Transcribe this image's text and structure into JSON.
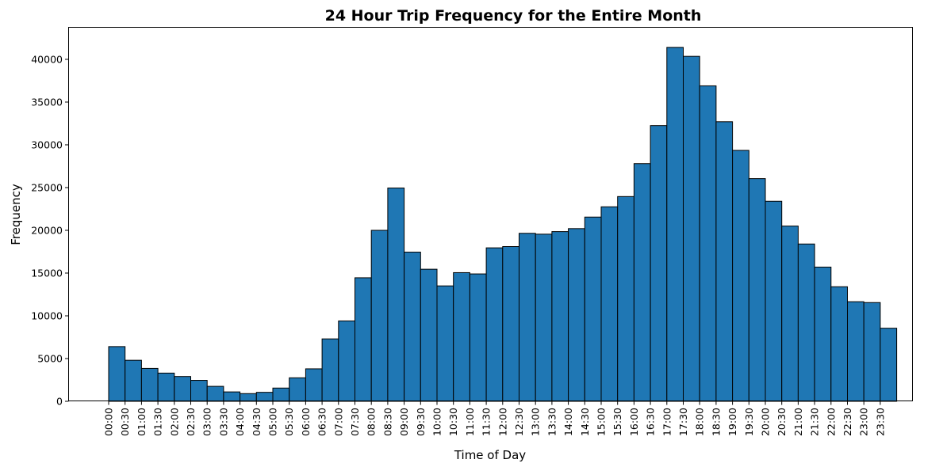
{
  "chart_data": {
    "type": "bar",
    "title": "24 Hour Trip Frequency for the Entire Month",
    "xlabel": "Time of Day",
    "ylabel": "Frequency",
    "ylim": [
      0,
      43700
    ],
    "yticks": [
      0,
      5000,
      10000,
      15000,
      20000,
      25000,
      30000,
      35000,
      40000
    ],
    "grid": false,
    "categories": [
      "00:00",
      "00:30",
      "01:00",
      "01:30",
      "02:00",
      "02:30",
      "03:00",
      "03:30",
      "04:00",
      "04:30",
      "05:00",
      "05:30",
      "06:00",
      "06:30",
      "07:00",
      "07:30",
      "08:00",
      "08:30",
      "09:00",
      "09:30",
      "10:00",
      "10:30",
      "11:00",
      "11:30",
      "12:00",
      "12:30",
      "13:00",
      "13:30",
      "14:00",
      "14:30",
      "15:00",
      "15:30",
      "16:00",
      "16:30",
      "17:00",
      "17:30",
      "18:00",
      "18:30",
      "19:00",
      "19:30",
      "20:00",
      "20:30",
      "21:00",
      "21:30",
      "22:00",
      "22:30",
      "23:00",
      "23:30"
    ],
    "values": [
      6400,
      4800,
      3850,
      3300,
      2900,
      2450,
      1750,
      1100,
      900,
      1050,
      1550,
      2750,
      3800,
      7300,
      9400,
      14450,
      20000,
      24950,
      17450,
      15450,
      13500,
      15050,
      14900,
      17950,
      18100,
      19650,
      19550,
      19850,
      20200,
      21550,
      22750,
      23950,
      27800,
      32250,
      41400,
      40350,
      36900,
      32700,
      29350,
      26050,
      23400,
      20500,
      18400,
      15700,
      13400,
      11650,
      11550,
      8550
    ]
  }
}
